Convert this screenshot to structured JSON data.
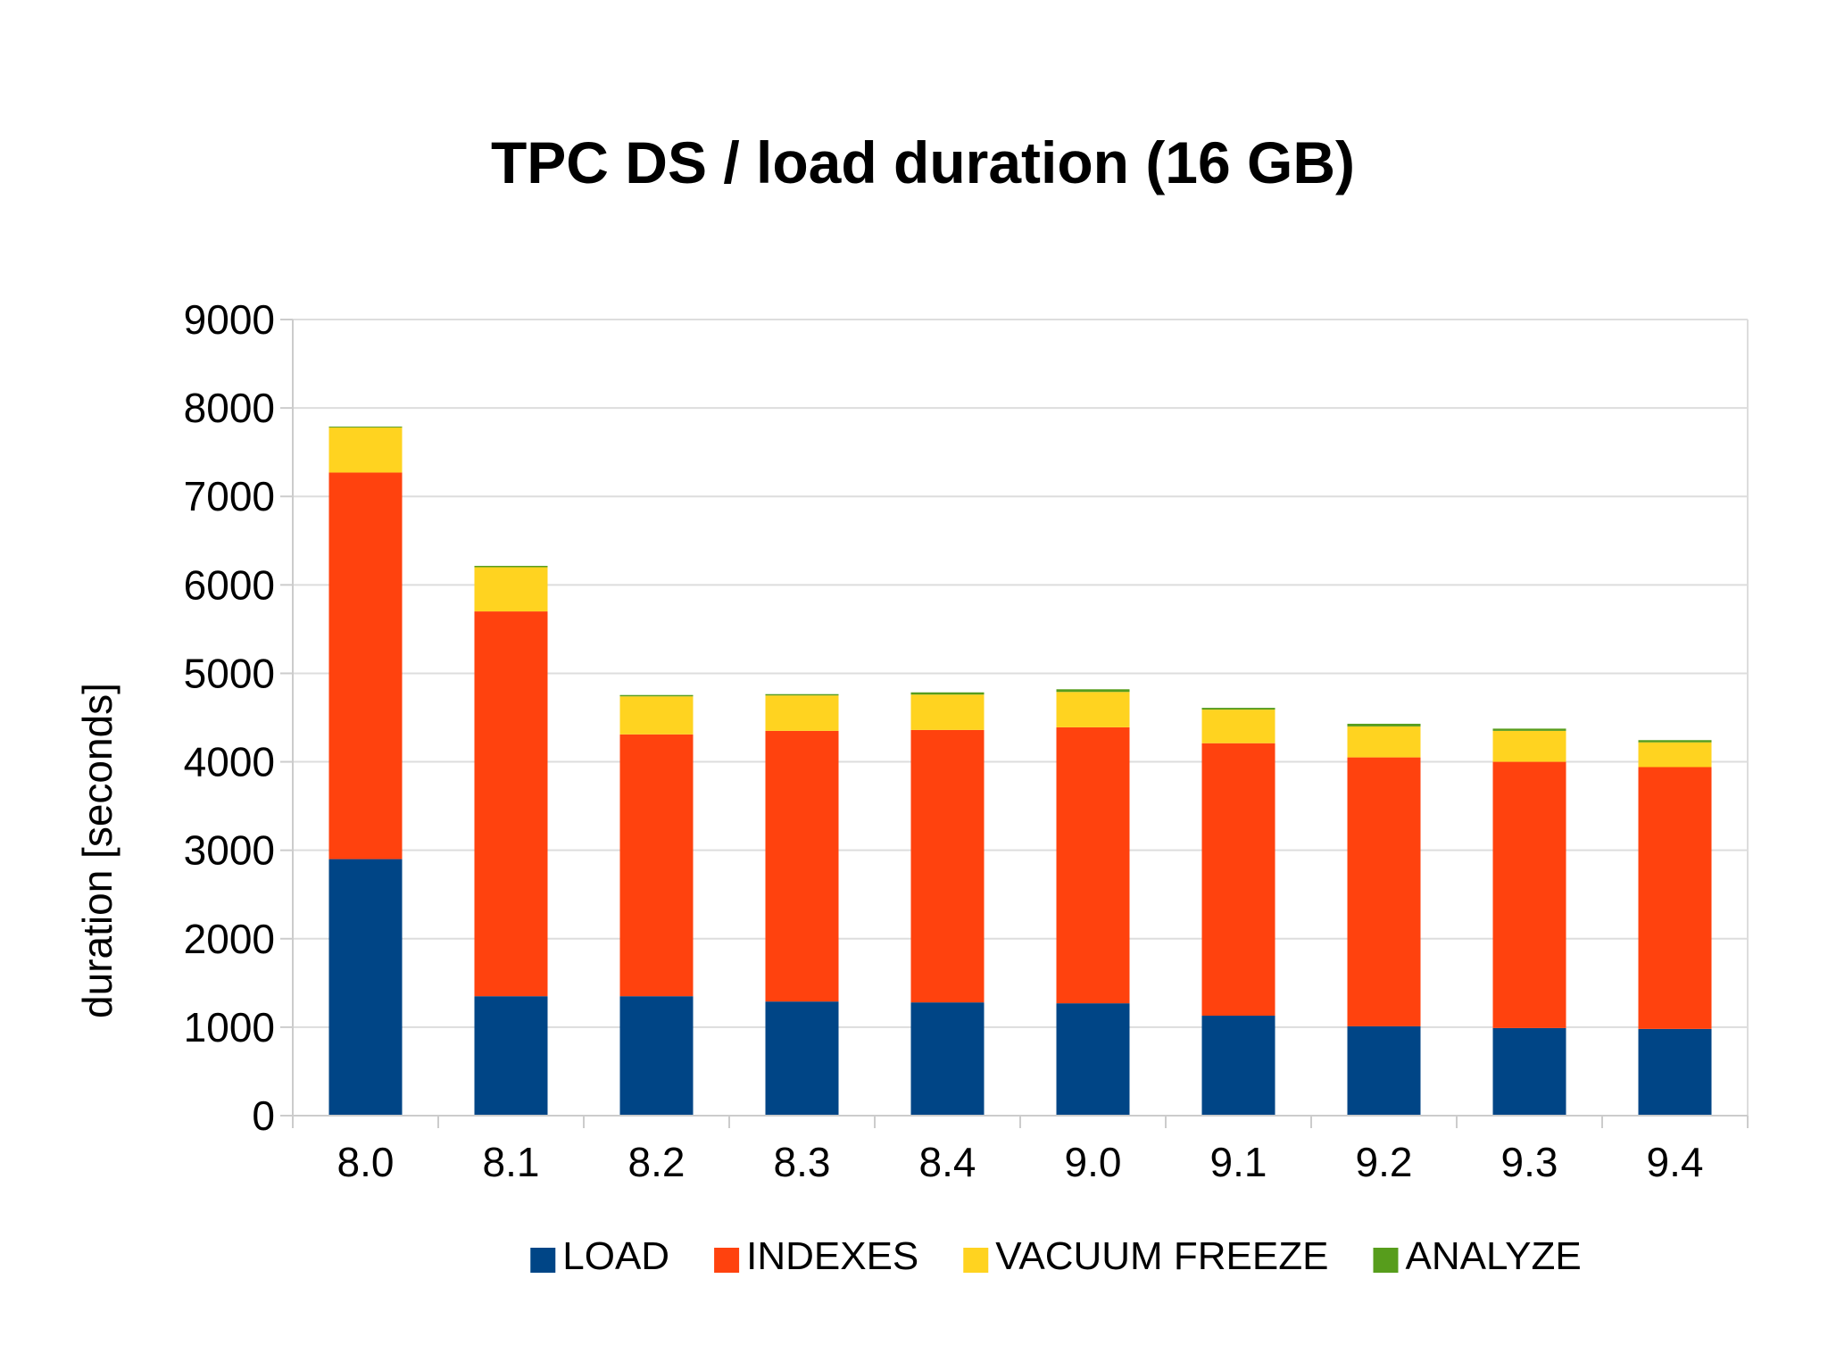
{
  "chart_data": {
    "type": "bar",
    "stacked": true,
    "title": "TPC DS / load duration (16 GB)",
    "xlabel": "",
    "ylabel": "duration [seconds]",
    "ylim": [
      0,
      9000
    ],
    "yticks": [
      0,
      1000,
      2000,
      3000,
      4000,
      5000,
      6000,
      7000,
      8000,
      9000
    ],
    "grid": true,
    "legend_position": "bottom",
    "categories": [
      "8.0",
      "8.1",
      "8.2",
      "8.3",
      "8.4",
      "9.0",
      "9.1",
      "9.2",
      "9.3",
      "9.4"
    ],
    "series": [
      {
        "name": "LOAD",
        "color": "#004586",
        "values": [
          2900,
          1350,
          1350,
          1290,
          1280,
          1270,
          1130,
          1010,
          990,
          980
        ]
      },
      {
        "name": "INDEXES",
        "color": "#ff420e",
        "values": [
          4370,
          4350,
          2960,
          3060,
          3080,
          3120,
          3080,
          3040,
          3010,
          2960
        ]
      },
      {
        "name": "VACUUM FREEZE",
        "color": "#ffd320",
        "values": [
          510,
          500,
          430,
          400,
          400,
          400,
          380,
          350,
          350,
          280
        ]
      },
      {
        "name": "ANALYZE",
        "color": "#579d1c",
        "values": [
          10,
          15,
          15,
          15,
          25,
          30,
          20,
          30,
          25,
          25
        ]
      }
    ]
  }
}
